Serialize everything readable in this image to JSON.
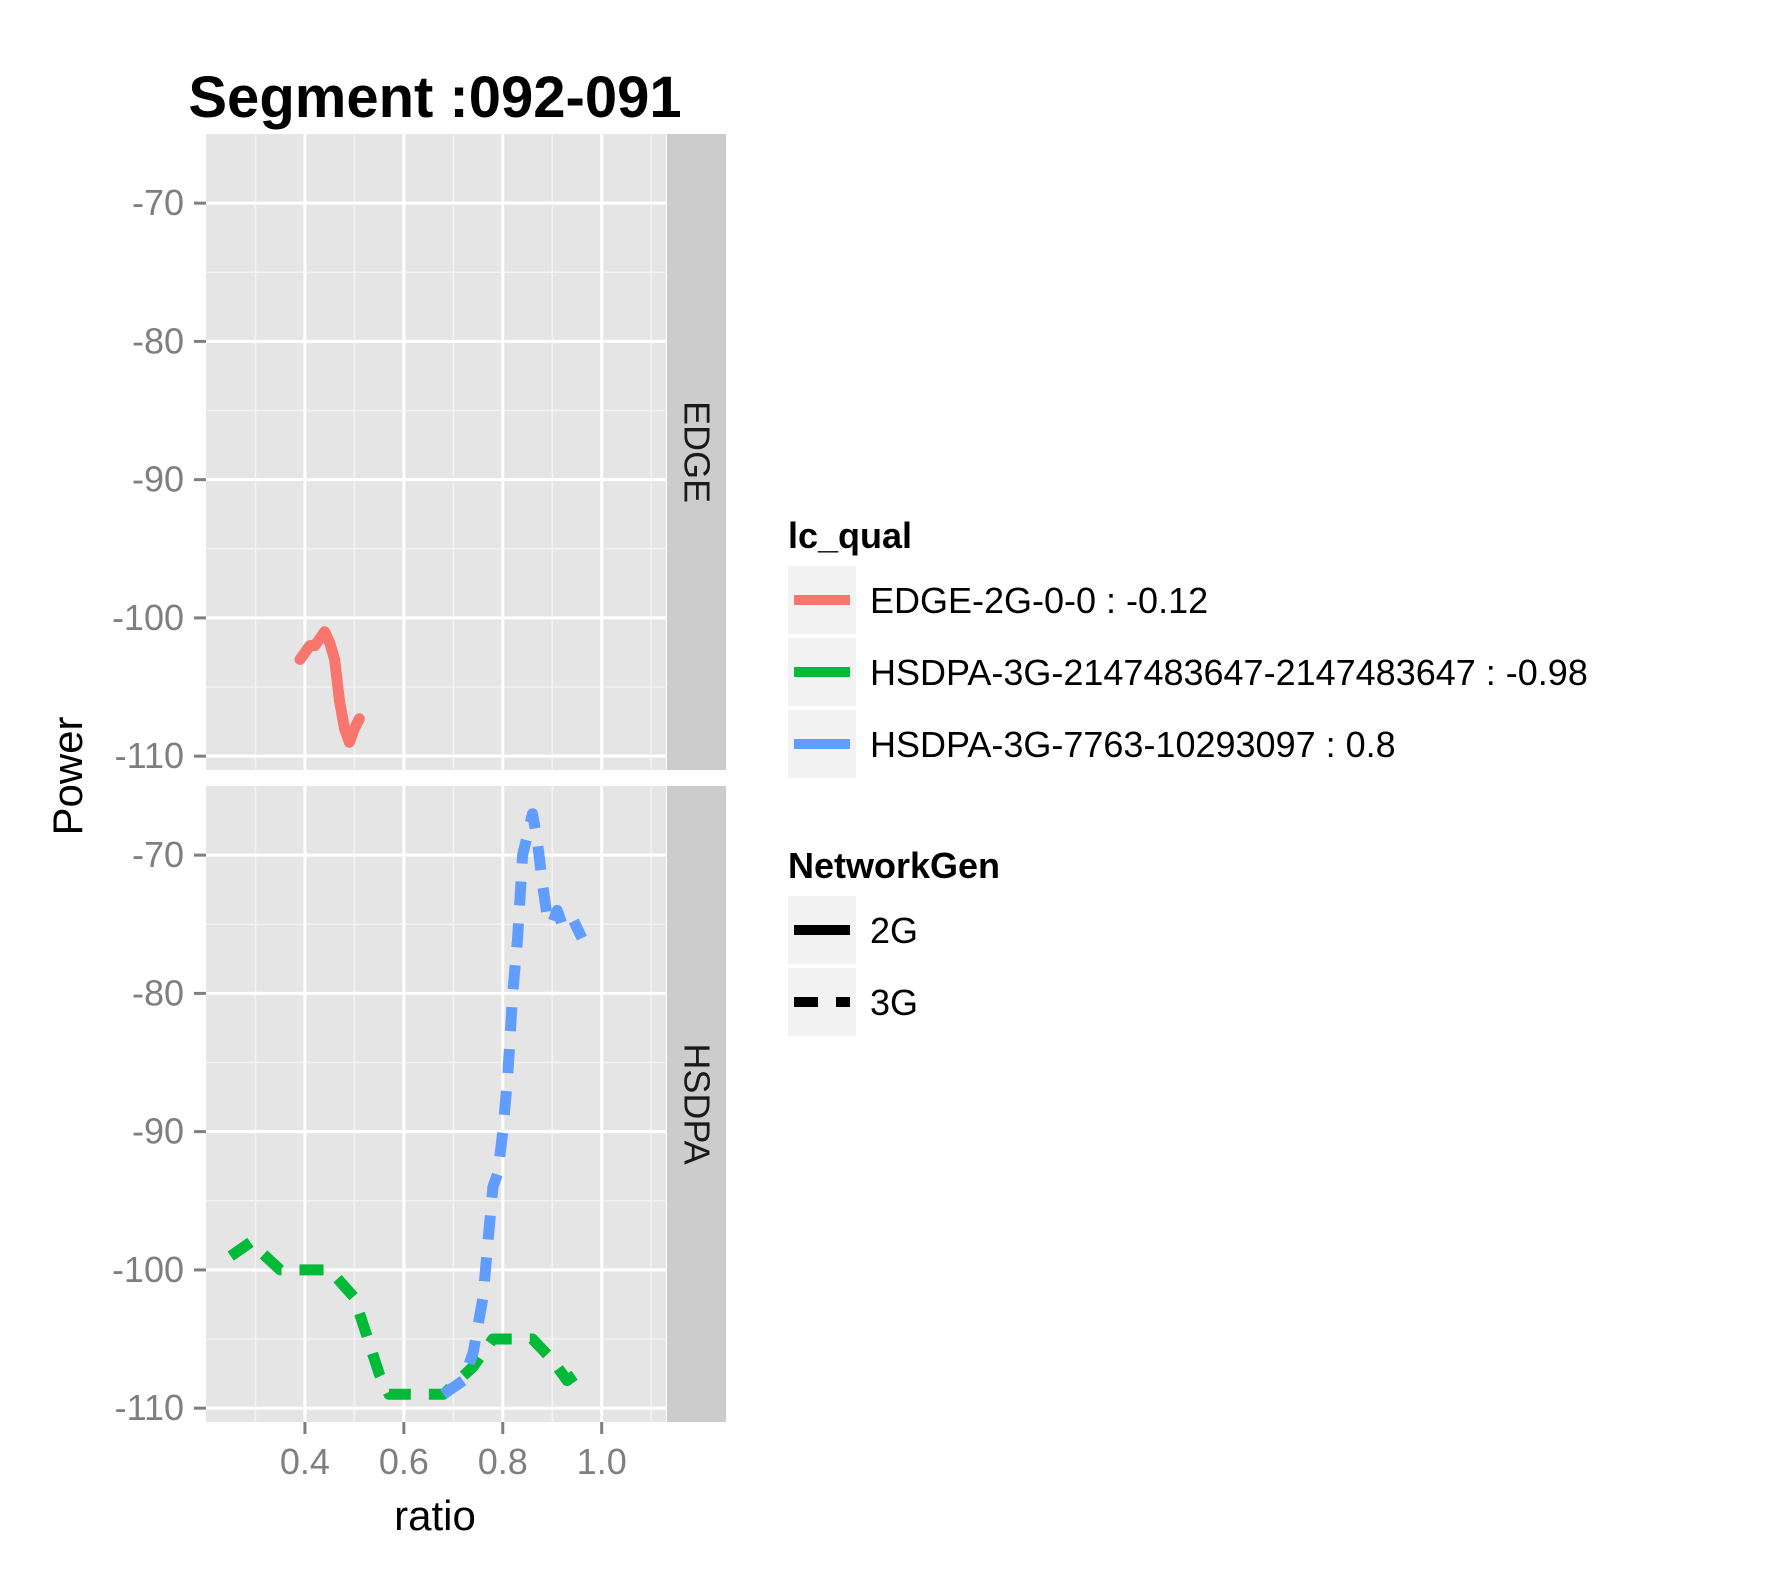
{
  "chart_data": {
    "type": "line",
    "title": "Segment :092-091",
    "xlabel": "ratio",
    "ylabel": "Power",
    "xlim": [
      0.2,
      1.13
    ],
    "ylim": [
      -111,
      -65
    ],
    "xticks": [
      0.4,
      0.6,
      0.8,
      1.0
    ],
    "xtick_labels": [
      "0.4",
      "0.6",
      "0.8",
      "1.0"
    ],
    "yticks": [
      -70,
      -80,
      -90,
      -100,
      -110
    ],
    "ytick_labels": [
      "-70",
      "-80",
      "-90",
      "-100",
      "-110"
    ],
    "grid": true,
    "facets": [
      "EDGE",
      "HSDPA"
    ],
    "series": [
      {
        "name": "EDGE-2G-0-0 : -0.12",
        "facet": "EDGE",
        "color": "#F8766D",
        "networkgen": "2G",
        "points": [
          [
            0.39,
            -103
          ],
          [
            0.41,
            -102
          ],
          [
            0.42,
            -102
          ],
          [
            0.43,
            -101.5
          ],
          [
            0.44,
            -101
          ],
          [
            0.45,
            -101.8
          ],
          [
            0.46,
            -103
          ],
          [
            0.47,
            -106
          ],
          [
            0.48,
            -108
          ],
          [
            0.49,
            -109
          ],
          [
            0.5,
            -108
          ],
          [
            0.51,
            -107.3
          ]
        ]
      },
      {
        "name": "HSDPA-3G-2147483647-2147483647 : -0.98",
        "facet": "HSDPA",
        "color": "#00BA38",
        "networkgen": "3G",
        "points": [
          [
            0.25,
            -99
          ],
          [
            0.29,
            -98
          ],
          [
            0.35,
            -100
          ],
          [
            0.45,
            -100
          ],
          [
            0.5,
            -102
          ],
          [
            0.55,
            -107.5
          ],
          [
            0.57,
            -109
          ],
          [
            0.6,
            -109
          ],
          [
            0.68,
            -109
          ],
          [
            0.74,
            -107
          ],
          [
            0.78,
            -105
          ],
          [
            0.82,
            -105
          ],
          [
            0.86,
            -105
          ],
          [
            0.9,
            -106.5
          ],
          [
            0.93,
            -108
          ],
          [
            0.97,
            -107
          ]
        ]
      },
      {
        "name": "HSDPA-3G-7763-10293097 : 0.8",
        "facet": "HSDPA",
        "color": "#619CFF",
        "networkgen": "3G",
        "points": [
          [
            0.68,
            -109
          ],
          [
            0.72,
            -108
          ],
          [
            0.74,
            -106
          ],
          [
            0.76,
            -102
          ],
          [
            0.77,
            -98
          ],
          [
            0.78,
            -94
          ],
          [
            0.79,
            -93
          ],
          [
            0.8,
            -90
          ],
          [
            0.81,
            -86
          ],
          [
            0.82,
            -80
          ],
          [
            0.83,
            -76
          ],
          [
            0.84,
            -70
          ],
          [
            0.86,
            -67
          ],
          [
            0.87,
            -69
          ],
          [
            0.88,
            -72
          ],
          [
            0.89,
            -74.5
          ],
          [
            0.9,
            -75
          ],
          [
            0.91,
            -74
          ],
          [
            0.92,
            -75
          ],
          [
            0.94,
            -74.5
          ],
          [
            0.96,
            -76
          ]
        ]
      }
    ],
    "legend": {
      "placement": "right",
      "color_title": "lc_qual",
      "color_items": [
        {
          "label": "EDGE-2G-0-0 : -0.12",
          "color": "#F8766D"
        },
        {
          "label": "HSDPA-3G-2147483647-2147483647 : -0.98",
          "color": "#00BA38"
        },
        {
          "label": "HSDPA-3G-7763-10293097 : 0.8",
          "color": "#619CFF"
        }
      ],
      "linetype_title": "NetworkGen",
      "linetype_items": [
        {
          "label": "2G",
          "dash": "solid"
        },
        {
          "label": "3G",
          "dash": "dashed"
        }
      ]
    }
  }
}
